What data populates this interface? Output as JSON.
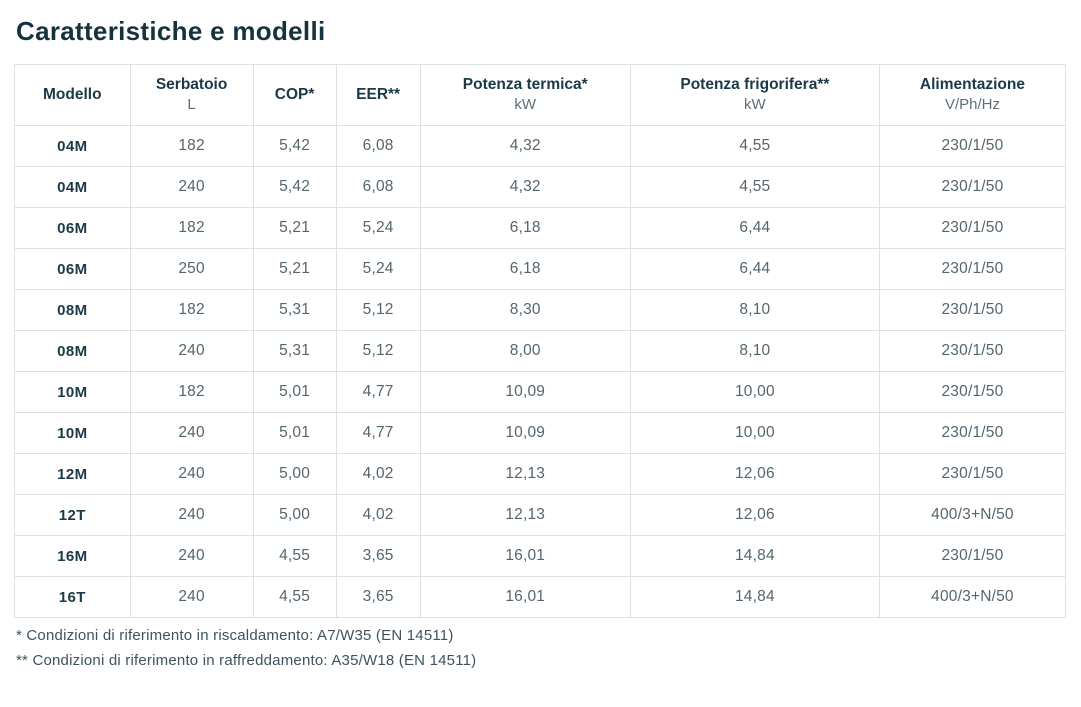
{
  "page": {
    "title": "Caratteristiche e modelli"
  },
  "table": {
    "columns": [
      {
        "key": "modello",
        "label": "Modello",
        "sub": ""
      },
      {
        "key": "serbatoio",
        "label": "Serbatoio",
        "sub": "L"
      },
      {
        "key": "cop",
        "label": "COP*",
        "sub": ""
      },
      {
        "key": "eer",
        "label": "EER**",
        "sub": ""
      },
      {
        "key": "potenza-termica",
        "label": "Potenza termica*",
        "sub": "kW"
      },
      {
        "key": "potenza-frigorifera",
        "label": "Potenza frigorifera**",
        "sub": "kW"
      },
      {
        "key": "alimentazione",
        "label": "Alimentazione",
        "sub": "V/Ph/Hz"
      }
    ],
    "rows": [
      [
        "04M",
        "182",
        "5,42",
        "6,08",
        "4,32",
        "4,55",
        "230/1/50"
      ],
      [
        "04M",
        "240",
        "5,42",
        "6,08",
        "4,32",
        "4,55",
        "230/1/50"
      ],
      [
        "06M",
        "182",
        "5,21",
        "5,24",
        "6,18",
        "6,44",
        "230/1/50"
      ],
      [
        "06M",
        "250",
        "5,21",
        "5,24",
        "6,18",
        "6,44",
        "230/1/50"
      ],
      [
        "08M",
        "182",
        "5,31",
        "5,12",
        "8,30",
        "8,10",
        "230/1/50"
      ],
      [
        "08M",
        "240",
        "5,31",
        "5,12",
        "8,00",
        "8,10",
        "230/1/50"
      ],
      [
        "10M",
        "182",
        "5,01",
        "4,77",
        "10,09",
        "10,00",
        "230/1/50"
      ],
      [
        "10M",
        "240",
        "5,01",
        "4,77",
        "10,09",
        "10,00",
        "230/1/50"
      ],
      [
        "12M",
        "240",
        "5,00",
        "4,02",
        "12,13",
        "12,06",
        "230/1/50"
      ],
      [
        "12T",
        "240",
        "5,00",
        "4,02",
        "12,13",
        "12,06",
        "400/3+N/50"
      ],
      [
        "16M",
        "240",
        "4,55",
        "3,65",
        "16,01",
        "14,84",
        "230/1/50"
      ],
      [
        "16T",
        "240",
        "4,55",
        "3,65",
        "16,01",
        "14,84",
        "400/3+N/50"
      ]
    ]
  },
  "footnotes": [
    "* Condizioni di riferimento in riscaldamento: A7/W35 (EN 14511)",
    "** Condizioni di riferimento in raffreddamento: A35/W18 (EN 14511)"
  ],
  "colors": {
    "title_text": "#16323f",
    "header_text": "#1b3947",
    "body_text": "#54656e",
    "footnote_text": "#3e535e",
    "border": "#dee1e1",
    "background": "#ffffff"
  }
}
